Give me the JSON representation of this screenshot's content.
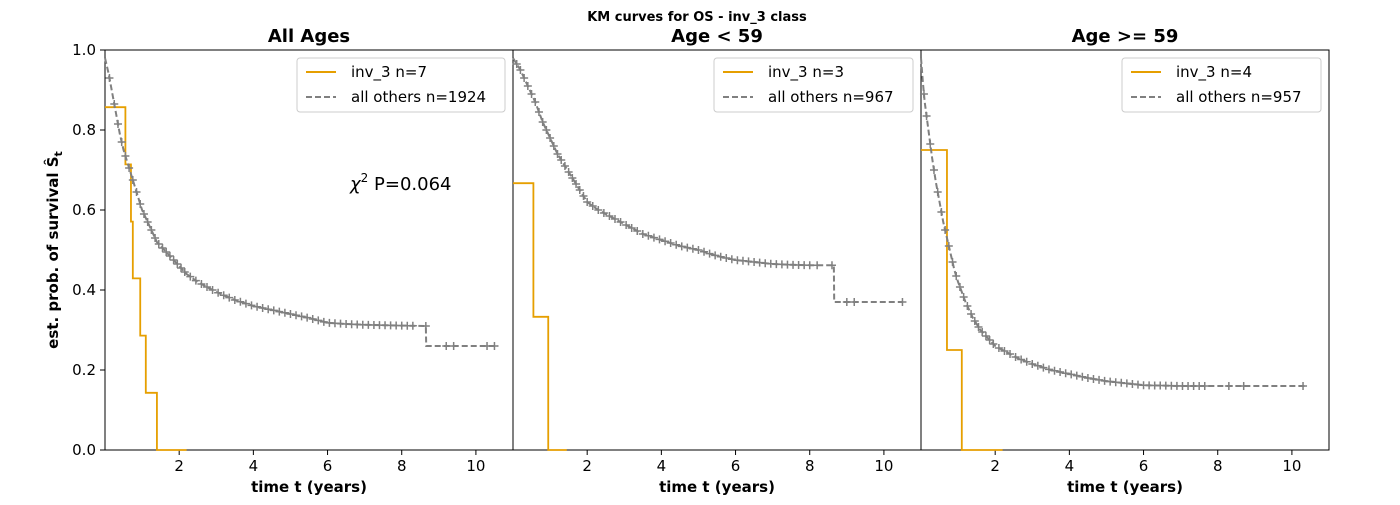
{
  "suptitle": "KM curves for OS - inv_3 class",
  "ylabel": "est. prob. of survival",
  "ylabel_symbol": "Ŝ",
  "ylabel_subscript": "t",
  "colors": {
    "inv3": "#e69f00",
    "others": "#808080"
  },
  "chart_data": [
    {
      "type": "line",
      "title": "All Ages",
      "xlabel": "time t (years)",
      "xlim": [
        0,
        11
      ],
      "ylim": [
        0,
        1
      ],
      "xticks": [
        2,
        4,
        6,
        8,
        10
      ],
      "yticks": [
        "0.0",
        "0.2",
        "0.4",
        "0.6",
        "0.8",
        "1.0"
      ],
      "legend_position": "top-right",
      "annotation": {
        "symbol": "χ",
        "sup": "2",
        "text": " P=0.064"
      },
      "series": [
        {
          "name": "inv_3 n=7",
          "style": "step",
          "x": [
            0,
            0.55,
            0.65,
            0.7,
            0.75,
            0.95,
            1.0,
            1.1,
            1.4,
            2.2
          ],
          "y": [
            0.857,
            0.714,
            0.714,
            0.571,
            0.429,
            0.286,
            0.286,
            0.143,
            0.0,
            0.0
          ]
        },
        {
          "name": "all others n=1924",
          "style": "dashed",
          "x": [
            0,
            0.1,
            0.2,
            0.3,
            0.4,
            0.5,
            0.6,
            0.7,
            0.8,
            0.9,
            1.0,
            1.2,
            1.4,
            1.6,
            1.8,
            2.0,
            2.2,
            2.5,
            3.0,
            3.5,
            4.0,
            4.5,
            5.0,
            5.5,
            6.0,
            6.5,
            7.0,
            7.5,
            8.0,
            8.65,
            8.66,
            10.6
          ],
          "y": [
            0.98,
            0.94,
            0.89,
            0.84,
            0.79,
            0.75,
            0.72,
            0.69,
            0.66,
            0.63,
            0.6,
            0.56,
            0.52,
            0.5,
            0.48,
            0.46,
            0.44,
            0.42,
            0.395,
            0.375,
            0.36,
            0.35,
            0.34,
            0.33,
            0.318,
            0.315,
            0.313,
            0.312,
            0.311,
            0.31,
            0.26,
            0.26
          ]
        }
      ],
      "censor_marks": [
        {
          "series": 1,
          "x": [
            0.12,
            0.25,
            0.35,
            0.45,
            0.55,
            0.65,
            0.75,
            0.85,
            0.95,
            1.05,
            1.15,
            1.25,
            1.35,
            1.45,
            1.55,
            1.65,
            1.75,
            1.85,
            1.95,
            2.05,
            2.15,
            2.3,
            2.45,
            2.6,
            2.75,
            2.9,
            3.05,
            3.2,
            3.35,
            3.5,
            3.65,
            3.8,
            3.95,
            4.1,
            4.25,
            4.4,
            4.55,
            4.7,
            4.85,
            5.0,
            5.15,
            5.3,
            5.45,
            5.6,
            5.75,
            5.9,
            6.05,
            6.2,
            6.35,
            6.5,
            6.65,
            6.8,
            6.95,
            7.1,
            7.25,
            7.4,
            7.55,
            7.7,
            7.85,
            8.0,
            8.15,
            8.3,
            8.65,
            9.2,
            9.4,
            10.3,
            10.5
          ]
        }
      ]
    },
    {
      "type": "line",
      "title": "Age < 59",
      "xlabel": "time t (years)",
      "xlim": [
        0,
        11
      ],
      "ylim": [
        0,
        1
      ],
      "xticks": [
        2,
        4,
        6,
        8,
        10
      ],
      "yticks": [],
      "legend_position": "top-right",
      "series": [
        {
          "name": "inv_3 n=3",
          "style": "step",
          "x": [
            0,
            0.55,
            0.95,
            1.45
          ],
          "y": [
            0.667,
            0.333,
            0.0,
            0.0
          ]
        },
        {
          "name": "all others n=967",
          "style": "dashed",
          "x": [
            0,
            0.2,
            0.4,
            0.6,
            0.8,
            1.0,
            1.2,
            1.4,
            1.6,
            1.8,
            2.0,
            2.3,
            2.6,
            3.0,
            3.5,
            4.0,
            4.5,
            5.0,
            5.5,
            6.0,
            6.5,
            7.0,
            7.5,
            8.0,
            8.5,
            8.65,
            8.66,
            10.5
          ],
          "y": [
            0.98,
            0.95,
            0.91,
            0.87,
            0.82,
            0.78,
            0.74,
            0.71,
            0.68,
            0.65,
            0.62,
            0.6,
            0.585,
            0.565,
            0.54,
            0.525,
            0.51,
            0.5,
            0.485,
            0.475,
            0.47,
            0.465,
            0.463,
            0.462,
            0.462,
            0.462,
            0.37,
            0.37
          ]
        }
      ],
      "censor_marks": [
        {
          "series": 1,
          "x": [
            0.1,
            0.2,
            0.3,
            0.4,
            0.5,
            0.6,
            0.7,
            0.8,
            0.9,
            1.0,
            1.1,
            1.2,
            1.3,
            1.4,
            1.5,
            1.6,
            1.7,
            1.8,
            1.9,
            2.0,
            2.15,
            2.3,
            2.45,
            2.6,
            2.75,
            2.9,
            3.05,
            3.2,
            3.35,
            3.5,
            3.65,
            3.8,
            3.95,
            4.1,
            4.25,
            4.4,
            4.55,
            4.7,
            4.85,
            5.0,
            5.15,
            5.3,
            5.45,
            5.6,
            5.75,
            5.9,
            6.05,
            6.2,
            6.35,
            6.5,
            6.65,
            6.8,
            6.95,
            7.1,
            7.25,
            7.4,
            7.55,
            7.7,
            7.85,
            8.0,
            8.2,
            8.6,
            9.0,
            9.2,
            10.5
          ]
        }
      ]
    },
    {
      "type": "line",
      "title": "Age >= 59",
      "xlabel": "time t (years)",
      "xlim": [
        0,
        11
      ],
      "ylim": [
        0,
        1
      ],
      "xticks": [
        2,
        4,
        6,
        8,
        10
      ],
      "yticks": [],
      "legend_position": "top-right",
      "series": [
        {
          "name": "inv_3 n=4",
          "style": "step",
          "x": [
            0,
            0.7,
            1.1,
            2.2
          ],
          "y": [
            0.75,
            0.25,
            0.0,
            0.0
          ]
        },
        {
          "name": "all others n=957",
          "style": "dashed",
          "x": [
            0,
            0.05,
            0.1,
            0.2,
            0.3,
            0.4,
            0.5,
            0.6,
            0.7,
            0.8,
            0.9,
            1.0,
            1.2,
            1.4,
            1.6,
            1.8,
            2.0,
            2.3,
            2.6,
            3.0,
            3.5,
            4.0,
            4.5,
            5.0,
            5.5,
            6.0,
            7.0,
            8.0,
            9.0,
            10.4
          ],
          "y": [
            0.98,
            0.92,
            0.87,
            0.8,
            0.73,
            0.67,
            0.62,
            0.57,
            0.53,
            0.49,
            0.45,
            0.42,
            0.37,
            0.33,
            0.3,
            0.28,
            0.26,
            0.245,
            0.23,
            0.215,
            0.2,
            0.19,
            0.18,
            0.172,
            0.167,
            0.162,
            0.16,
            0.16,
            0.16,
            0.16
          ]
        }
      ],
      "censor_marks": [
        {
          "series": 1,
          "x": [
            0.08,
            0.15,
            0.25,
            0.35,
            0.45,
            0.55,
            0.65,
            0.75,
            0.85,
            0.95,
            1.05,
            1.15,
            1.25,
            1.35,
            1.45,
            1.55,
            1.65,
            1.75,
            1.85,
            1.95,
            2.1,
            2.25,
            2.4,
            2.55,
            2.7,
            2.85,
            3.0,
            3.15,
            3.3,
            3.45,
            3.6,
            3.75,
            3.9,
            4.05,
            4.2,
            4.35,
            4.5,
            4.65,
            4.8,
            4.95,
            5.1,
            5.25,
            5.4,
            5.55,
            5.7,
            5.85,
            6.0,
            6.15,
            6.3,
            6.45,
            6.6,
            6.75,
            6.9,
            7.05,
            7.2,
            7.35,
            7.5,
            7.65,
            8.3,
            8.7,
            10.3
          ]
        }
      ]
    }
  ]
}
